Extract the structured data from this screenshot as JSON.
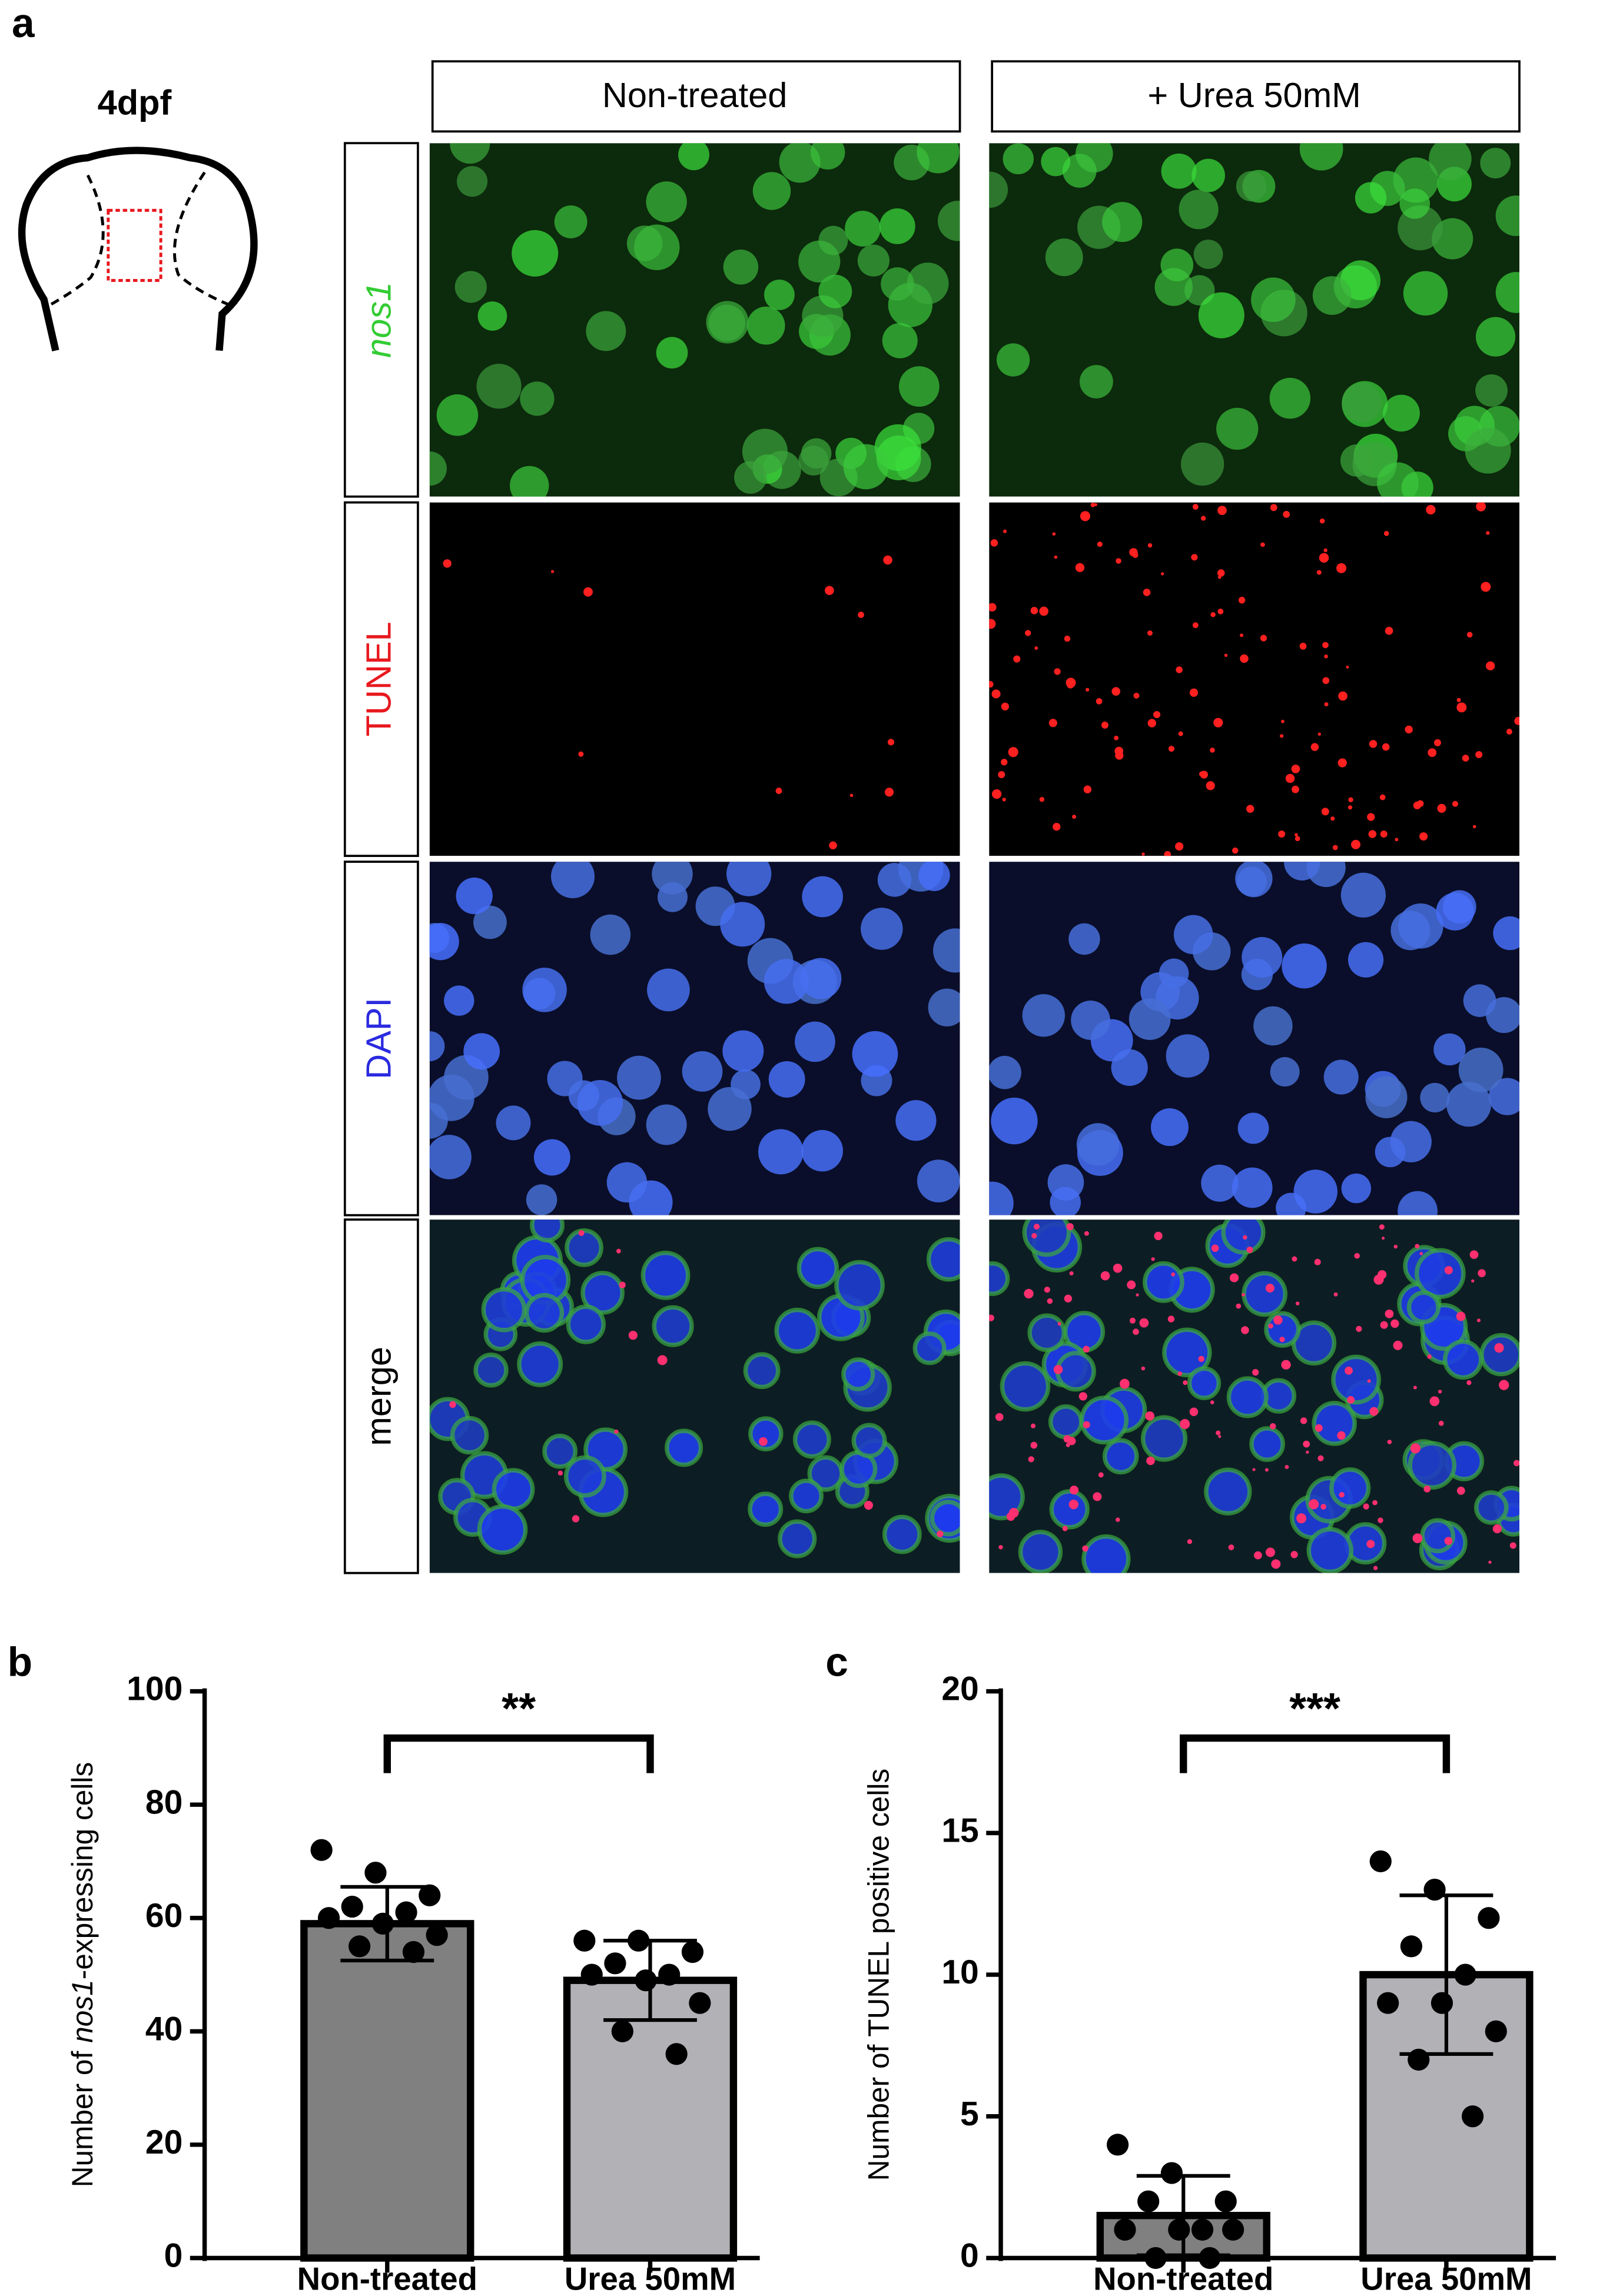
{
  "panel_labels": {
    "a": "a",
    "b": "b",
    "c": "c"
  },
  "schematic": {
    "stage": "4dpf"
  },
  "microscopy": {
    "columns": [
      "Non-treated",
      "+ Urea 50mM"
    ],
    "rows": [
      {
        "label": "nos1",
        "color": "#33cc33",
        "italic": true
      },
      {
        "label": "TUNEL",
        "color": "#e8191f",
        "italic": false
      },
      {
        "label": "DAPI",
        "color": "#2a2ae0",
        "italic": false
      },
      {
        "label": "merge",
        "color": "#000000",
        "italic": false
      }
    ]
  },
  "chart_data": [
    {
      "type": "bar",
      "ylabel": [
        "Number of ",
        "nos1",
        "-expressing cells"
      ],
      "ylabel_italic": [
        false,
        true,
        false
      ],
      "categories": [
        "Non-treated",
        "Urea 50mM"
      ],
      "values": [
        59,
        49
      ],
      "errors": [
        6.5,
        7
      ],
      "colors": [
        "#808080",
        "#b1b1b6"
      ],
      "points": [
        [
          72,
          68,
          64,
          62,
          61,
          60,
          59,
          57,
          55,
          54
        ],
        [
          56,
          56,
          54,
          52,
          50,
          50,
          49,
          45,
          40,
          36
        ]
      ],
      "ylim": [
        0,
        100
      ],
      "yticks": [
        0,
        20,
        40,
        60,
        80,
        100
      ],
      "significance": "**"
    },
    {
      "type": "bar",
      "ylabel": [
        "Number of TUNEL positive cells"
      ],
      "ylabel_italic": [
        false
      ],
      "categories": [
        "Non-treated",
        "Urea 50mM"
      ],
      "values": [
        1.5,
        10
      ],
      "errors": [
        1.4,
        2.8
      ],
      "colors": [
        "#808080",
        "#b1b1b6"
      ],
      "points": [
        [
          4,
          3,
          2,
          2,
          1,
          1,
          1,
          1,
          0,
          0
        ],
        [
          14,
          13,
          12,
          11,
          10,
          9,
          9,
          8,
          7,
          5
        ]
      ],
      "ylim": [
        0,
        20
      ],
      "yticks": [
        0,
        5,
        10,
        15,
        20
      ],
      "significance": "***"
    }
  ]
}
